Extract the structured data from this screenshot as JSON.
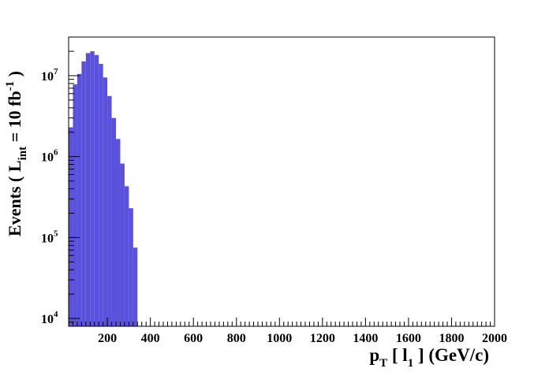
{
  "chart_data": {
    "type": "bar",
    "title": "",
    "xlabel": {
      "parts": [
        "p",
        "T",
        " [ l",
        "1",
        " ] (GeV/c)"
      ]
    },
    "ylabel": {
      "parts": [
        "Events  ( L",
        "int",
        " = 10 fb",
        "-1",
        " )"
      ]
    },
    "xlim": [
      20,
      2000
    ],
    "ylim": [
      8000,
      30000000
    ],
    "y_scale": "log",
    "grid": false,
    "x_tick_labels": [
      "200",
      "400",
      "600",
      "800",
      "1000",
      "1200",
      "1400",
      "1600",
      "1800",
      "2000"
    ],
    "x_ticks": [
      200,
      400,
      600,
      800,
      1000,
      1200,
      1400,
      1600,
      1800,
      2000
    ],
    "y_tick_labels": [
      {
        "base": "10",
        "exp": "4",
        "value": 10000
      },
      {
        "base": "10",
        "exp": "5",
        "value": 100000
      },
      {
        "base": "10",
        "exp": "6",
        "value": 1000000
      },
      {
        "base": "10",
        "exp": "7",
        "value": 10000000
      }
    ],
    "bin_width": 20,
    "bin_low_edges": [
      20,
      40,
      60,
      80,
      100,
      120,
      140,
      160,
      180,
      200,
      220,
      240,
      260,
      280,
      300,
      320
    ],
    "values": [
      2300000,
      7800000,
      10500000,
      15000000,
      19000000,
      20000000,
      18000000,
      14000000,
      9500000,
      5600000,
      3000000,
      1650000,
      820000,
      430000,
      230000,
      75000
    ],
    "fill_color": "#5a52dc"
  }
}
